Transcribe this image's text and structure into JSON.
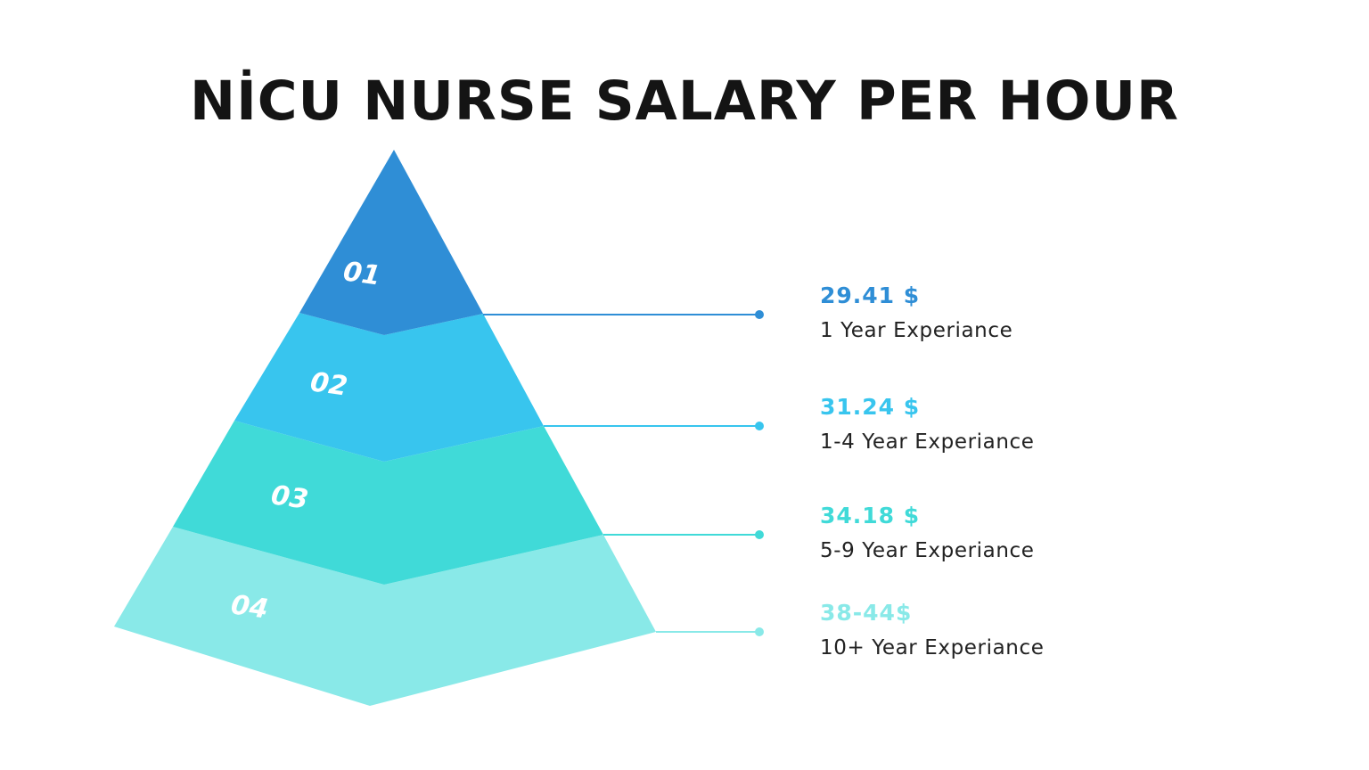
{
  "title": "NİCU NURSE SALARY PER HOUR",
  "tiers": [
    {
      "number": "01",
      "price": "29.41 $",
      "experience": "1 Year Experiance",
      "color": "#2f8ed6"
    },
    {
      "number": "02",
      "price": "31.24 $",
      "experience": "1-4 Year Experiance",
      "color": "#38c5ee"
    },
    {
      "number": "03",
      "price": "34.18 $",
      "experience": "5-9 Year Experiance",
      "color": "#40dad8"
    },
    {
      "number": "04",
      "price": "38-44$",
      "experience": "10+ Year Experiance",
      "color": "#89e9e8"
    }
  ]
}
